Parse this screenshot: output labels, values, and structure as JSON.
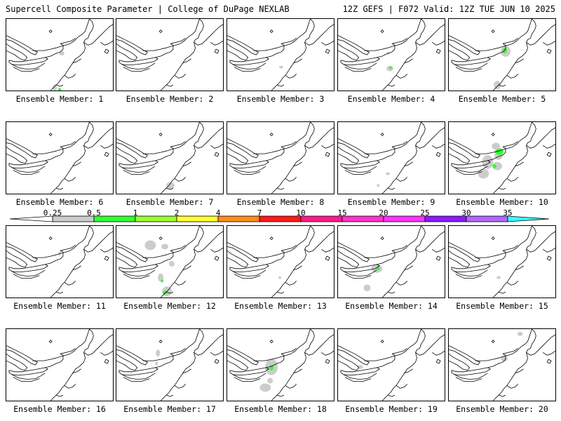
{
  "header": {
    "left": "Supercell Composite Parameter | College of DuPage NEXLAB",
    "right": "12Z GEFS | F072 Valid: 12Z TUE JUN 10 2025"
  },
  "legend": {
    "ticks": [
      "0.25",
      "0.5",
      "1",
      "2",
      "4",
      "7",
      "10",
      "15",
      "20",
      "25",
      "30",
      "35"
    ],
    "colors": [
      "#cccccc",
      "#33ff33",
      "#99ff33",
      "#ffff33",
      "#ff8c1a",
      "#ff1a1a",
      "#ff1a8c",
      "#ff33cc",
      "#ff33ff",
      "#8c1aff",
      "#b366ff",
      "#33ffff"
    ]
  },
  "colors": {
    "low": "#cccccc",
    "mid": "#33ff33",
    "high": "#66ff00"
  },
  "panels": [
    {
      "label": "Ensemble Member: 1",
      "blobs": [
        [
          80,
          50,
          4,
          3,
          0
        ],
        [
          70,
          100,
          3,
          5,
          0
        ],
        [
          77,
          103,
          2,
          3,
          1
        ]
      ]
    },
    {
      "label": "Ensemble Member: 2",
      "blobs": []
    },
    {
      "label": "Ensemble Member: 3",
      "blobs": [
        [
          78,
          70,
          3,
          2,
          0
        ]
      ]
    },
    {
      "label": "Ensemble Member: 4",
      "blobs": [
        [
          75,
          72,
          5,
          4,
          0
        ],
        [
          76,
          71,
          2,
          2,
          1
        ],
        [
          73,
          50,
          2,
          2,
          0
        ]
      ]
    },
    {
      "label": "Ensemble Member: 5",
      "blobs": [
        [
          82,
          47,
          7,
          8,
          0
        ],
        [
          81,
          46,
          3,
          4,
          1
        ],
        [
          70,
          96,
          5,
          6,
          0
        ]
      ]
    },
    {
      "label": "Ensemble Member: 6",
      "blobs": []
    },
    {
      "label": "Ensemble Member: 7",
      "blobs": [
        [
          78,
          92,
          6,
          5,
          0
        ],
        [
          60,
          110,
          4,
          3,
          0
        ]
      ]
    },
    {
      "label": "Ensemble Member: 8",
      "blobs": []
    },
    {
      "label": "Ensemble Member: 9",
      "blobs": [
        [
          72,
          75,
          3,
          2,
          0
        ],
        [
          58,
          92,
          2,
          2,
          0
        ]
      ]
    },
    {
      "label": "Ensemble Member: 10",
      "blobs": [
        [
          72,
          47,
          6,
          8,
          0
        ],
        [
          73,
          43,
          6,
          5,
          1
        ],
        [
          56,
          58,
          8,
          10,
          0
        ],
        [
          68,
          35,
          6,
          5,
          0
        ],
        [
          70,
          64,
          7,
          6,
          0
        ],
        [
          66,
          64,
          3,
          3,
          1
        ],
        [
          50,
          75,
          8,
          7,
          0
        ]
      ]
    },
    {
      "label": "Ensemble Member: 11",
      "blobs": [
        [
          77,
          40,
          2,
          3,
          0
        ]
      ]
    },
    {
      "label": "Ensemble Member: 12",
      "blobs": [
        [
          49,
          28,
          8,
          7,
          0
        ],
        [
          70,
          30,
          5,
          4,
          0
        ],
        [
          80,
          55,
          4,
          4,
          0
        ],
        [
          64,
          75,
          4,
          6,
          0
        ],
        [
          66,
          80,
          2,
          2,
          1
        ],
        [
          73,
          95,
          7,
          7,
          0
        ],
        [
          70,
          97,
          3,
          3,
          1
        ]
      ]
    },
    {
      "label": "Ensemble Member: 13",
      "blobs": [
        [
          76,
          75,
          2,
          2,
          0
        ]
      ]
    },
    {
      "label": "Ensemble Member: 14",
      "blobs": [
        [
          56,
          62,
          8,
          6,
          0
        ],
        [
          58,
          62,
          3,
          2,
          1
        ],
        [
          42,
          90,
          5,
          5,
          0
        ]
      ]
    },
    {
      "label": "Ensemble Member: 15",
      "blobs": [
        [
          72,
          75,
          3,
          2,
          0
        ]
      ]
    },
    {
      "label": "Ensemble Member: 16",
      "blobs": []
    },
    {
      "label": "Ensemble Member: 17",
      "blobs": [
        [
          60,
          35,
          3,
          5,
          0
        ],
        [
          58,
          50,
          2,
          3,
          0
        ]
      ]
    },
    {
      "label": "Ensemble Member: 18",
      "blobs": [
        [
          64,
          55,
          9,
          12,
          0
        ],
        [
          64,
          56,
          3,
          4,
          1
        ],
        [
          55,
          85,
          8,
          6,
          0
        ],
        [
          62,
          75,
          4,
          4,
          0
        ]
      ]
    },
    {
      "label": "Ensemble Member: 19",
      "blobs": [
        [
          32,
          55,
          4,
          3,
          0
        ]
      ]
    },
    {
      "label": "Ensemble Member: 20",
      "blobs": [
        [
          103,
          7,
          4,
          3,
          0
        ],
        [
          80,
          43,
          5,
          4,
          0
        ]
      ]
    }
  ]
}
